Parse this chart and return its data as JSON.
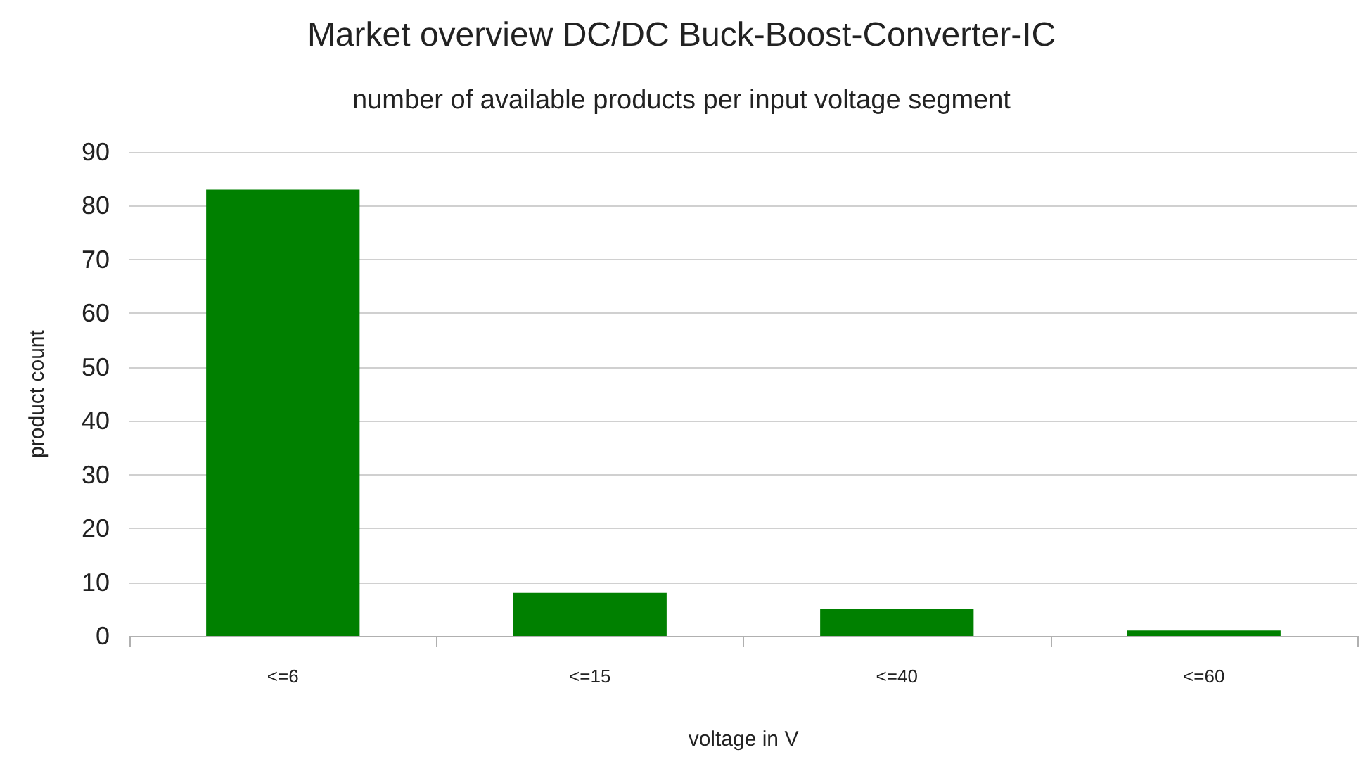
{
  "chart_data": {
    "type": "bar",
    "title": "Market overview DC/DC Buck-Boost-Converter-IC",
    "subtitle": "number of available products per input voltage segment",
    "xlabel": "voltage in V",
    "ylabel": "product count",
    "categories": [
      "<=6",
      "<=15",
      "<=40",
      "<=60"
    ],
    "values": [
      83,
      8,
      5,
      1
    ],
    "color": "#008000",
    "ylim": [
      0,
      90
    ],
    "yticks": [
      0,
      10,
      20,
      30,
      40,
      50,
      60,
      70,
      80,
      90
    ],
    "grid": "y"
  }
}
